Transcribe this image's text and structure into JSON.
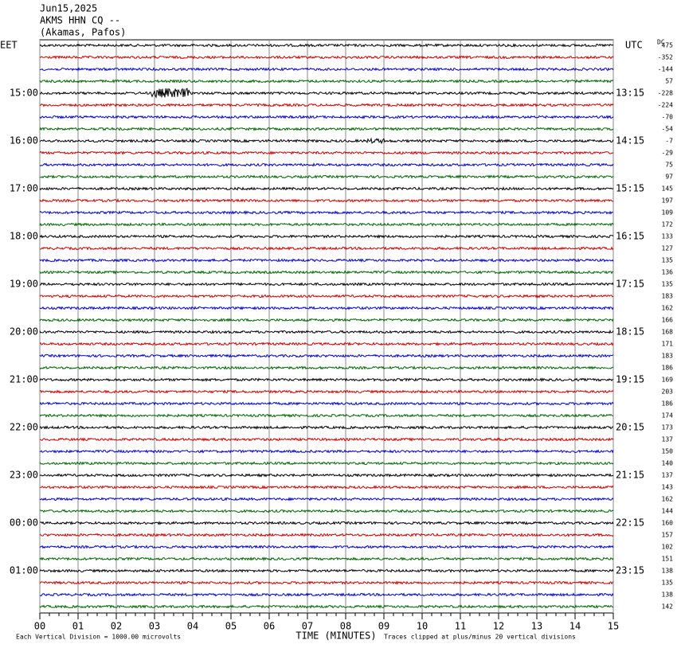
{
  "chart_data": {
    "type": "helicorder",
    "title": [
      "Jun15,2025",
      "AKMS HHN CQ --",
      "(Akamas, Pafos)"
    ],
    "left_axis_label": "EET",
    "right_axis_label": "UTC",
    "dc_label": "DC",
    "left_times": [
      "15:00",
      "16:00",
      "17:00",
      "18:00",
      "19:00",
      "20:00",
      "21:00",
      "22:00",
      "23:00",
      "00:00",
      "01:00"
    ],
    "right_times": [
      "13:15",
      "14:15",
      "15:15",
      "16:15",
      "17:15",
      "18:15",
      "19:15",
      "20:15",
      "21:15",
      "22:15",
      "23:15"
    ],
    "dc_values": [
      475,
      -352,
      -144,
      57,
      -228,
      -224,
      -70,
      -54,
      -7,
      -29,
      75,
      97,
      145,
      197,
      109,
      172,
      133,
      127,
      135,
      136,
      135,
      183,
      162,
      166,
      168,
      171,
      183,
      186,
      169,
      203,
      186,
      174,
      173,
      137,
      150,
      140,
      137,
      143,
      162,
      144,
      160,
      157,
      102,
      151,
      138,
      135,
      138,
      142
    ],
    "colors": [
      "#000000",
      "#cc0000",
      "#0000cc",
      "#006600"
    ],
    "xlim": [
      0,
      15
    ],
    "xticks": [
      {
        "value": 0,
        "label": "00"
      },
      {
        "value": 1,
        "label": "01"
      },
      {
        "value": 2,
        "label": "02"
      },
      {
        "value": 3,
        "label": "03"
      },
      {
        "value": 4,
        "label": "04"
      },
      {
        "value": 5,
        "label": "05"
      },
      {
        "value": 6,
        "label": "06"
      },
      {
        "value": 7,
        "label": "07"
      },
      {
        "value": 8,
        "label": "08"
      },
      {
        "value": 9,
        "label": "09"
      },
      10,
      11,
      12,
      13,
      14,
      15
    ],
    "xlabel": "TIME (MINUTES)",
    "notes": [
      "Each Vertical Division = 1000.00 microvolts",
      "Traces clipped at plus/minus 20 vertical divisions"
    ]
  }
}
